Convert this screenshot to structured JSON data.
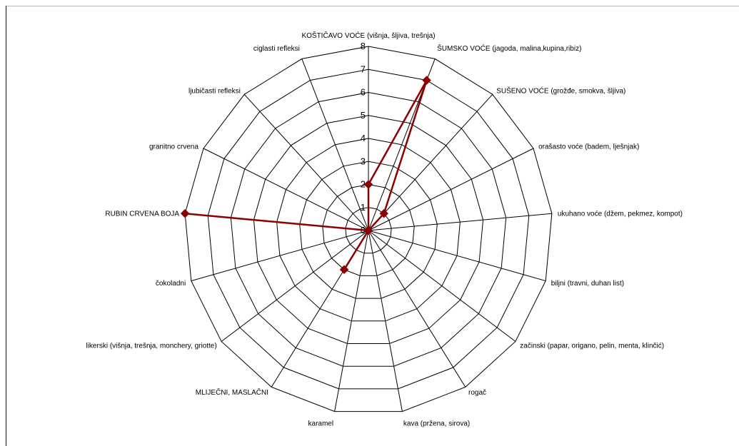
{
  "chart_data": {
    "type": "radar",
    "title": "",
    "grid": true,
    "legend": "none",
    "rlim": [
      0,
      8
    ],
    "ticks": [
      "0",
      "1",
      "2",
      "3",
      "4",
      "5",
      "6",
      "7",
      "8"
    ],
    "categories": [
      "KOŠTIČAVO VOĆE (višnja, šljiva, trešnja)",
      "ŠUMSKO VOĆE (jagoda, malina,kupina,ribiz)",
      "SUŠENO VOĆE (grožđe, smokva, šljiva)",
      "orašasto voće (badem, lješnjak)",
      "ukuhano voće (džem, pekmez, kompot)",
      "biljni (travni, duhan list)",
      "začinski (papar, origano, pelin, menta, klinčić)",
      "rogač",
      "kava (pržena, sirova)",
      "karamel",
      "MLIJEČNI, MASLAČNI",
      "likerski (višnja, trešnja, monchery, griotte)",
      "čokoladni",
      "RUBIN CRVENA BOJA",
      "granitno crvena",
      "ljubičasti refleksi",
      "ciglasti refleksi"
    ],
    "series": [
      {
        "values": [
          2,
          7,
          1,
          0,
          0,
          0,
          0,
          0,
          0,
          0,
          2,
          0,
          0,
          8,
          0,
          0,
          0
        ],
        "color": "#8b0000"
      }
    ]
  }
}
